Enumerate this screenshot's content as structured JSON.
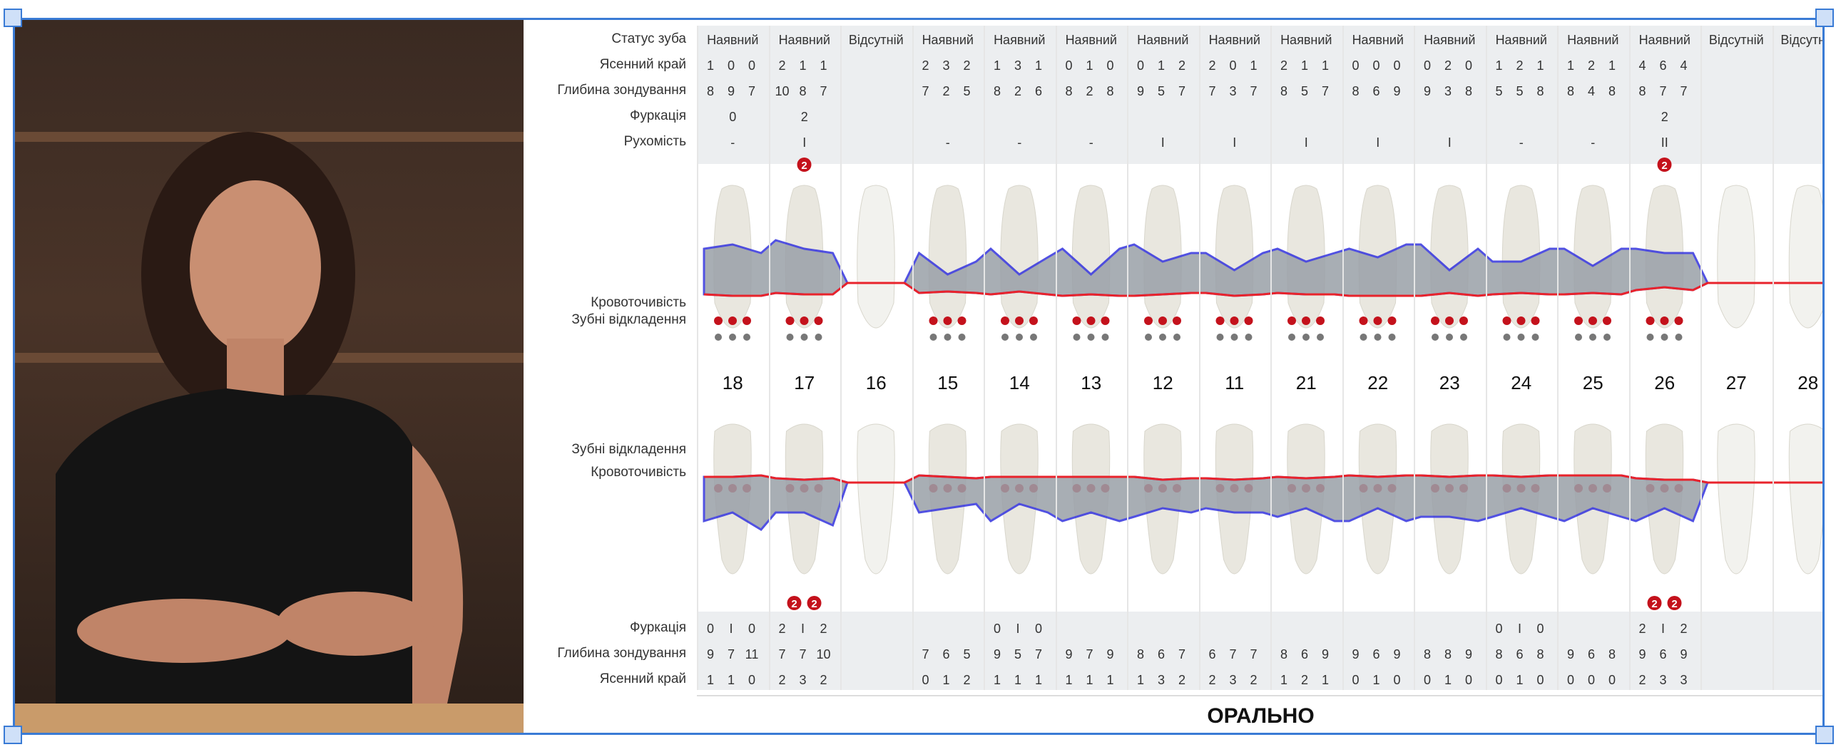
{
  "upper": {
    "labels": {
      "status": "Статус зуба",
      "margin": "Ясенний край",
      "depth": "Глибина зондування",
      "furcation": "Фуркація",
      "mobility": "Рухомість",
      "bleeding": "Кровоточивість",
      "plaque": "Зубні відкладення"
    },
    "teeth": [
      {
        "num": "18",
        "status": "Наявний",
        "margin": [
          "1",
          "0",
          "0"
        ],
        "depth": [
          "8",
          "9",
          "7"
        ],
        "furcation": "0",
        "mobility": "-"
      },
      {
        "num": "17",
        "status": "Наявний",
        "margin": [
          "2",
          "1",
          "1"
        ],
        "depth": [
          "10",
          "8",
          "7"
        ],
        "furcation": "2",
        "mobility": "I"
      },
      {
        "num": "16",
        "status": "Відсутній",
        "margin": [
          "",
          "",
          ""
        ],
        "depth": [
          "",
          "",
          ""
        ],
        "furcation": "",
        "mobility": ""
      },
      {
        "num": "15",
        "status": "Наявний",
        "margin": [
          "2",
          "3",
          "2"
        ],
        "depth": [
          "7",
          "2",
          "5"
        ],
        "furcation": "",
        "mobility": "-"
      },
      {
        "num": "14",
        "status": "Наявний",
        "margin": [
          "1",
          "3",
          "1"
        ],
        "depth": [
          "8",
          "2",
          "6"
        ],
        "furcation": "",
        "mobility": "-"
      },
      {
        "num": "13",
        "status": "Наявний",
        "margin": [
          "0",
          "1",
          "0"
        ],
        "depth": [
          "8",
          "2",
          "8"
        ],
        "furcation": "",
        "mobility": "-"
      },
      {
        "num": "12",
        "status": "Наявний",
        "margin": [
          "0",
          "1",
          "2"
        ],
        "depth": [
          "9",
          "5",
          "7"
        ],
        "furcation": "",
        "mobility": "I"
      },
      {
        "num": "11",
        "status": "Наявний",
        "margin": [
          "2",
          "0",
          "1"
        ],
        "depth": [
          "7",
          "3",
          "7"
        ],
        "furcation": "",
        "mobility": "I"
      },
      {
        "num": "21",
        "status": "Наявний",
        "margin": [
          "2",
          "1",
          "1"
        ],
        "depth": [
          "8",
          "5",
          "7"
        ],
        "furcation": "",
        "mobility": "I"
      },
      {
        "num": "22",
        "status": "Наявний",
        "margin": [
          "0",
          "0",
          "0"
        ],
        "depth": [
          "8",
          "6",
          "9"
        ],
        "furcation": "",
        "mobility": "I"
      },
      {
        "num": "23",
        "status": "Наявний",
        "margin": [
          "0",
          "2",
          "0"
        ],
        "depth": [
          "9",
          "3",
          "8"
        ],
        "furcation": "",
        "mobility": "I"
      },
      {
        "num": "24",
        "status": "Наявний",
        "margin": [
          "1",
          "2",
          "1"
        ],
        "depth": [
          "5",
          "5",
          "8"
        ],
        "furcation": "",
        "mobility": "-"
      },
      {
        "num": "25",
        "status": "Наявний",
        "margin": [
          "1",
          "2",
          "1"
        ],
        "depth": [
          "8",
          "4",
          "8"
        ],
        "furcation": "",
        "mobility": "-"
      },
      {
        "num": "26",
        "status": "Наявний",
        "margin": [
          "4",
          "6",
          "4"
        ],
        "depth": [
          "8",
          "7",
          "7"
        ],
        "furcation": "2",
        "mobility": "II"
      },
      {
        "num": "27",
        "status": "Відсутній",
        "margin": [
          "",
          "",
          ""
        ],
        "depth": [
          "",
          "",
          ""
        ],
        "furcation": "",
        "mobility": ""
      },
      {
        "num": "28",
        "status": "Відсутній",
        "margin": [
          "",
          "",
          ""
        ],
        "depth": [
          "",
          "",
          ""
        ],
        "furcation": "",
        "mobility": ""
      }
    ],
    "badges": [
      {
        "tooth": "17",
        "value": "2"
      },
      {
        "tooth": "26",
        "value": "2"
      }
    ]
  },
  "lower": {
    "labels": {
      "plaque": "Зубні відкладення",
      "bleeding": "Кровоточивість",
      "furcation": "Фуркація",
      "depth": "Глибина зондування",
      "margin": "Ясенний край"
    },
    "teeth": [
      {
        "num": "18",
        "furcation": [
          "0",
          "I",
          "0"
        ],
        "depth": [
          "9",
          "7",
          "11"
        ],
        "margin": [
          "1",
          "1",
          "0"
        ]
      },
      {
        "num": "17",
        "furcation": [
          "2",
          "I",
          "2"
        ],
        "depth": [
          "7",
          "7",
          "10"
        ],
        "margin": [
          "2",
          "3",
          "2"
        ]
      },
      {
        "num": "16",
        "furcation": [
          "",
          "",
          ""
        ],
        "depth": [
          "",
          "",
          ""
        ],
        "margin": [
          "",
          "",
          ""
        ]
      },
      {
        "num": "15",
        "furcation": [
          "",
          "",
          ""
        ],
        "depth": [
          "7",
          "6",
          "5"
        ],
        "margin": [
          "0",
          "1",
          "2"
        ]
      },
      {
        "num": "14",
        "furcation": [
          "0",
          "I",
          "0"
        ],
        "depth": [
          "9",
          "5",
          "7"
        ],
        "margin": [
          "1",
          "1",
          "1"
        ]
      },
      {
        "num": "13",
        "furcation": [
          "",
          "",
          ""
        ],
        "depth": [
          "9",
          "7",
          "9"
        ],
        "margin": [
          "1",
          "1",
          "1"
        ]
      },
      {
        "num": "12",
        "furcation": [
          "",
          "",
          ""
        ],
        "depth": [
          "8",
          "6",
          "7"
        ],
        "margin": [
          "1",
          "3",
          "2"
        ]
      },
      {
        "num": "11",
        "furcation": [
          "",
          "",
          ""
        ],
        "depth": [
          "6",
          "7",
          "7"
        ],
        "margin": [
          "2",
          "3",
          "2"
        ]
      },
      {
        "num": "21",
        "furcation": [
          "",
          "",
          ""
        ],
        "depth": [
          "8",
          "6",
          "9"
        ],
        "margin": [
          "1",
          "2",
          "1"
        ]
      },
      {
        "num": "22",
        "furcation": [
          "",
          "",
          ""
        ],
        "depth": [
          "9",
          "6",
          "9"
        ],
        "margin": [
          "0",
          "1",
          "0"
        ]
      },
      {
        "num": "23",
        "furcation": [
          "",
          "",
          ""
        ],
        "depth": [
          "8",
          "8",
          "9"
        ],
        "margin": [
          "0",
          "1",
          "0"
        ]
      },
      {
        "num": "24",
        "furcation": [
          "0",
          "I",
          "0"
        ],
        "depth": [
          "8",
          "6",
          "8"
        ],
        "margin": [
          "0",
          "1",
          "0"
        ]
      },
      {
        "num": "25",
        "furcation": [
          "",
          "",
          ""
        ],
        "depth": [
          "9",
          "6",
          "8"
        ],
        "margin": [
          "0",
          "0",
          "0"
        ]
      },
      {
        "num": "26",
        "furcation": [
          "2",
          "I",
          "2"
        ],
        "depth": [
          "9",
          "6",
          "9"
        ],
        "margin": [
          "2",
          "3",
          "3"
        ]
      },
      {
        "num": "27",
        "furcation": [
          "",
          "",
          ""
        ],
        "depth": [
          "",
          "",
          ""
        ],
        "margin": [
          "",
          "",
          ""
        ]
      },
      {
        "num": "28",
        "furcation": [
          "",
          "",
          ""
        ],
        "depth": [
          "",
          "",
          ""
        ],
        "margin": [
          "",
          "",
          ""
        ]
      }
    ],
    "badges": [
      {
        "tooth": "17",
        "value": "2"
      },
      {
        "tooth": "17",
        "value": "2"
      },
      {
        "tooth": "26",
        "value": "2"
      },
      {
        "tooth": "26",
        "value": "2"
      }
    ]
  },
  "footer": {
    "label": "ОРАЛЬНО"
  },
  "colors": {
    "margin_line": "#e8232b",
    "depth_line": "#3333dd",
    "pocket_fill": "#9aa0a8",
    "plaque_yellow": "#f5e600",
    "plaque_green": "#1a9a2a",
    "frame": "#3a7bd5",
    "row_bg": "#eceef0"
  }
}
